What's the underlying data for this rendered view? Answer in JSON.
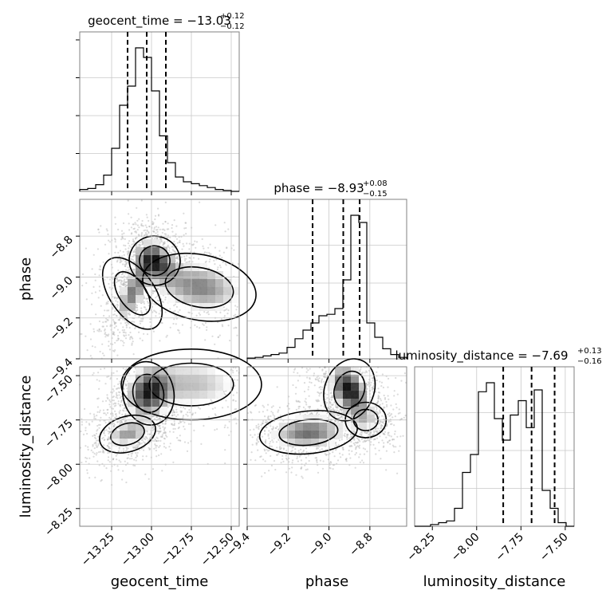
{
  "chart_data": {
    "type": "corner",
    "parameters": [
      "geocent_time",
      "phase",
      "luminosity_distance"
    ],
    "xlabels": [
      "geocent_time",
      "phase",
      "luminosity_distance"
    ],
    "ylabels": [
      "phase",
      "luminosity_distance"
    ],
    "titles": [
      {
        "text": "geocent_time = −13.03",
        "plus": "+0.12",
        "minus": "−0.12"
      },
      {
        "text": "phase = −8.93",
        "plus": "+0.08",
        "minus": "−0.15"
      },
      {
        "text": "luminosity_distance = −7.69",
        "plus": "+0.13",
        "minus": "−0.16"
      }
    ],
    "ranges": [
      [
        -13.45,
        -12.45
      ],
      [
        -9.4,
        -8.62
      ],
      [
        -8.35,
        -7.45
      ]
    ],
    "ticks": [
      {
        "values": [
          -13.25,
          -13.0,
          -12.75,
          -12.5
        ],
        "labels": [
          "−13.25",
          "−13.00",
          "−12.75",
          "−12.50"
        ]
      },
      {
        "values": [
          -9.4,
          -9.2,
          -9.0,
          -8.8
        ],
        "labels": [
          "−9.4",
          "−9.2",
          "−9.0",
          "−8.8"
        ]
      },
      {
        "values": [
          -8.25,
          -8.0,
          -7.75,
          -7.5
        ],
        "labels": [
          "−8.25",
          "−8.00",
          "−7.75",
          "−7.50"
        ]
      }
    ],
    "quantiles": [
      [
        -13.15,
        -13.03,
        -12.91
      ],
      [
        -9.08,
        -8.93,
        -8.85
      ],
      [
        -7.85,
        -7.69,
        -7.56
      ]
    ],
    "hist_1d": [
      {
        "edges_min": -13.45,
        "edges_max": -12.45,
        "counts": [
          2,
          3,
          7,
          17,
          45,
          90,
          110,
          150,
          140,
          105,
          58,
          30,
          15,
          10,
          8,
          6,
          4,
          2,
          1,
          0
        ]
      },
      {
        "edges_min": -9.4,
        "edges_max": -8.62,
        "counts": [
          1,
          2,
          4,
          6,
          8,
          16,
          28,
          40,
          50,
          60,
          62,
          70,
          110,
          200,
          190,
          50,
          30,
          14,
          6,
          2
        ]
      },
      {
        "edges_min": -8.35,
        "edges_max": -7.45,
        "counts": [
          0,
          0,
          1,
          2,
          3,
          10,
          30,
          40,
          75,
          80,
          60,
          48,
          62,
          70,
          55,
          76,
          20,
          10,
          2,
          0
        ]
      }
    ],
    "grid": true,
    "data_color": "#000000",
    "scatter_color": "#b0b0b0"
  }
}
